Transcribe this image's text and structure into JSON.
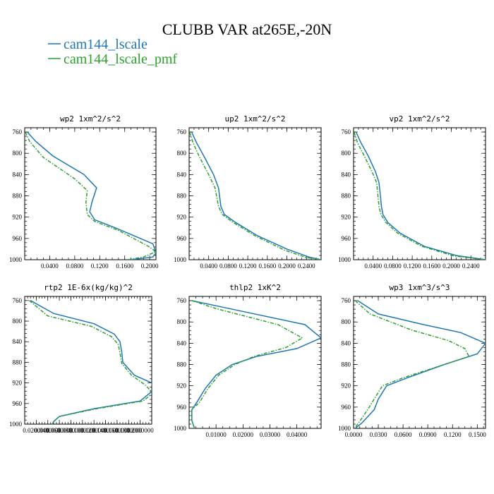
{
  "figure": {
    "title": "CLUBB VAR at265E,-20N",
    "legend": [
      {
        "label": "cam144_lscale",
        "color": "#1f77b4"
      },
      {
        "label": "cam144_lscale_pmf",
        "color": "#2ca02c"
      }
    ]
  },
  "chart_data": [
    {
      "type": "line",
      "title": "wp2  1xm^2/s^2",
      "xlim": [
        0.0,
        0.21
      ],
      "ylim": [
        1000,
        752
      ],
      "yticks": [
        760,
        800,
        840,
        880,
        920,
        960,
        1000
      ],
      "xticks": [
        0.04,
        0.08,
        0.12,
        0.16,
        0.2
      ],
      "xtick_labels": [
        "0.0400",
        "0.0800",
        "0.1200",
        "0.1600",
        "0.2000"
      ],
      "series": [
        {
          "name": "cam144_lscale",
          "color": "#1f77b4",
          "dashed": false,
          "x": [
            0.004,
            0.018,
            0.045,
            0.095,
            0.115,
            0.108,
            0.104,
            0.112,
            0.145,
            0.205,
            0.21,
            0.205,
            0.17
          ],
          "y": [
            760,
            778,
            805,
            840,
            865,
            890,
            910,
            925,
            940,
            970,
            987,
            995,
            1000
          ]
        },
        {
          "name": "cam144_lscale_pmf",
          "color": "#2ca02c",
          "dashed": true,
          "x": [
            0.001,
            0.008,
            0.03,
            0.08,
            0.1,
            0.098,
            0.1,
            0.112,
            0.15,
            0.198,
            0.21,
            0.19,
            0.165
          ],
          "y": [
            760,
            778,
            808,
            848,
            870,
            892,
            915,
            928,
            945,
            975,
            985,
            995,
            1000
          ]
        }
      ]
    },
    {
      "type": "line",
      "title": "up2  1xm^2/s^2",
      "xlim": [
        0.0,
        0.27
      ],
      "ylim": [
        1000,
        752
      ],
      "yticks": [
        760,
        800,
        840,
        880,
        920,
        960,
        1000
      ],
      "xticks": [
        0.04,
        0.08,
        0.12,
        0.16,
        0.2,
        0.24
      ],
      "xtick_labels": [
        "0.0400",
        "0.0800",
        "0.1200",
        "0.1600",
        "0.2000",
        "0.2400"
      ],
      "series": [
        {
          "name": "cam144_lscale",
          "color": "#1f77b4",
          "dashed": false,
          "x": [
            0.005,
            0.015,
            0.03,
            0.05,
            0.06,
            0.063,
            0.065,
            0.072,
            0.095,
            0.14,
            0.2,
            0.245,
            0.27
          ],
          "y": [
            760,
            780,
            805,
            840,
            865,
            885,
            900,
            915,
            930,
            955,
            980,
            995,
            1000
          ]
        },
        {
          "name": "cam144_lscale_pmf",
          "color": "#2ca02c",
          "dashed": true,
          "x": [
            0.001,
            0.008,
            0.02,
            0.04,
            0.053,
            0.057,
            0.06,
            0.068,
            0.09,
            0.135,
            0.195,
            0.24,
            0.27
          ],
          "y": [
            760,
            780,
            805,
            840,
            865,
            885,
            900,
            915,
            930,
            955,
            982,
            996,
            1000
          ]
        }
      ]
    },
    {
      "type": "line",
      "title": "vp2  1xm^2/s^2",
      "xlim": [
        0.0,
        0.27
      ],
      "ylim": [
        1000,
        752
      ],
      "yticks": [
        760,
        800,
        840,
        880,
        920,
        960,
        1000
      ],
      "xticks": [
        0.04,
        0.08,
        0.12,
        0.16,
        0.2,
        0.24
      ],
      "xtick_labels": [
        "0.0400",
        "0.0800",
        "0.1200",
        "0.1600",
        "0.2000",
        "0.2400"
      ],
      "series": [
        {
          "name": "cam144_lscale",
          "color": "#1f77b4",
          "dashed": false,
          "x": [
            0.005,
            0.015,
            0.03,
            0.045,
            0.052,
            0.055,
            0.057,
            0.06,
            0.07,
            0.095,
            0.145,
            0.21,
            0.27
          ],
          "y": [
            760,
            780,
            805,
            835,
            855,
            880,
            900,
            915,
            930,
            950,
            975,
            992,
            1000
          ]
        },
        {
          "name": "cam144_lscale_pmf",
          "color": "#2ca02c",
          "dashed": true,
          "x": [
            0.001,
            0.008,
            0.022,
            0.038,
            0.047,
            0.05,
            0.052,
            0.056,
            0.066,
            0.09,
            0.14,
            0.205,
            0.27
          ],
          "y": [
            760,
            780,
            805,
            835,
            855,
            880,
            900,
            915,
            930,
            950,
            975,
            993,
            1000
          ]
        }
      ]
    },
    {
      "type": "line",
      "title": "rtp2  1E-6x(kg/kg)^2",
      "xlim": [
        0.0,
        0.22
      ],
      "ylim": [
        1000,
        752
      ],
      "yticks": [
        760,
        800,
        840,
        880,
        920,
        960,
        1000
      ],
      "xticks": [
        0.02,
        0.04,
        0.06,
        0.08,
        0.1,
        0.12,
        0.14,
        0.16,
        0.18,
        0.2
      ],
      "xtick_labels": [
        "0.0200000",
        "0.0400000",
        "0.0600000",
        "0.0800000",
        "0.1000000",
        "0.1200000",
        "0.1400000",
        "0.1600000",
        "0.1800000",
        "0.2000000"
      ],
      "series": [
        {
          "name": "cam144_lscale",
          "color": "#1f77b4",
          "dashed": false,
          "x": [
            0.01,
            0.05,
            0.12,
            0.155,
            0.165,
            0.168,
            0.17,
            0.19,
            0.22,
            0.222,
            0.2,
            0.12,
            0.06,
            0.05,
            0.048
          ],
          "y": [
            760,
            785,
            805,
            825,
            840,
            860,
            880,
            905,
            920,
            935,
            955,
            970,
            985,
            995,
            1000
          ]
        },
        {
          "name": "cam144_lscale_pmf",
          "color": "#2ca02c",
          "dashed": true,
          "x": [
            0.008,
            0.04,
            0.115,
            0.15,
            0.162,
            0.165,
            0.168,
            0.185,
            0.21,
            0.222,
            0.205,
            0.125,
            0.06,
            0.05,
            0.048
          ],
          "y": [
            760,
            790,
            810,
            830,
            845,
            862,
            882,
            905,
            925,
            940,
            955,
            970,
            985,
            995,
            1000
          ]
        }
      ]
    },
    {
      "type": "line",
      "title": "thlp2  1xK^2",
      "xlim": [
        0.0,
        0.049
      ],
      "ylim": [
        1000,
        752
      ],
      "yticks": [
        760,
        800,
        840,
        880,
        920,
        960,
        1000
      ],
      "xticks": [
        0.01,
        0.02,
        0.03,
        0.04
      ],
      "xtick_labels": [
        "0.01000",
        "0.02000",
        "0.03000",
        "0.04000"
      ],
      "series": [
        {
          "name": "cam144_lscale",
          "color": "#1f77b4",
          "dashed": false,
          "x": [
            0.001,
            0.015,
            0.043,
            0.049,
            0.04,
            0.025,
            0.016,
            0.01,
            0.006,
            0.003,
            0.001,
            0.001,
            0.002
          ],
          "y": [
            760,
            775,
            805,
            830,
            850,
            865,
            880,
            900,
            925,
            950,
            965,
            985,
            1000
          ]
        },
        {
          "name": "cam144_lscale_pmf",
          "color": "#2ca02c",
          "dashed": true,
          "x": [
            0.001,
            0.01,
            0.033,
            0.042,
            0.036,
            0.024,
            0.017,
            0.011,
            0.007,
            0.004,
            0.001,
            0.001,
            0.002
          ],
          "y": [
            760,
            775,
            805,
            830,
            848,
            865,
            880,
            900,
            925,
            950,
            965,
            985,
            1000
          ]
        }
      ]
    },
    {
      "type": "line",
      "title": "wp3  1xm^3/s^3",
      "xlim": [
        0.0,
        0.16
      ],
      "ylim": [
        1000,
        752
      ],
      "yticks": [
        760,
        800,
        840,
        880,
        920,
        960,
        1000
      ],
      "xticks": [
        0.0,
        0.03,
        0.06,
        0.09,
        0.12,
        0.15
      ],
      "xtick_labels": [
        "0.0000",
        "0.0300",
        "0.0600",
        "0.0900",
        "0.1200",
        "0.1500"
      ],
      "series": [
        {
          "name": "cam144_lscale",
          "color": "#1f77b4",
          "dashed": false,
          "x": [
            0.005,
            0.03,
            0.085,
            0.13,
            0.16,
            0.15,
            0.11,
            0.065,
            0.04,
            0.03,
            0.025,
            0.01,
            0.002
          ],
          "y": [
            760,
            785,
            805,
            820,
            840,
            860,
            880,
            905,
            920,
            945,
            965,
            990,
            1000
          ]
        },
        {
          "name": "cam144_lscale_pmf",
          "color": "#2ca02c",
          "dashed": true,
          "x": [
            0.002,
            0.02,
            0.07,
            0.115,
            0.135,
            0.14,
            0.11,
            0.06,
            0.035,
            0.025,
            0.017,
            0.006,
            0.001
          ],
          "y": [
            760,
            785,
            815,
            835,
            850,
            865,
            880,
            905,
            920,
            945,
            965,
            990,
            1000
          ]
        }
      ]
    }
  ]
}
